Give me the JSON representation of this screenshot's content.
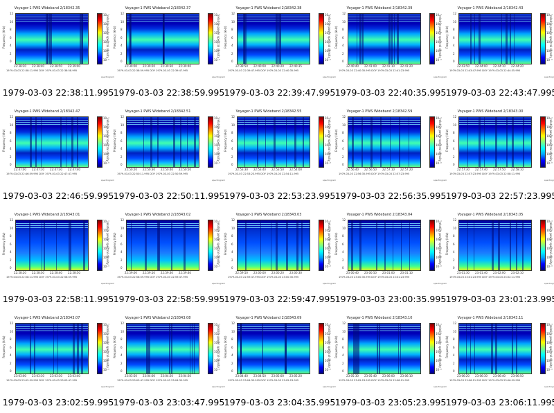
{
  "tile": {
    "title_prefix": "Voyager-1 PWS Wideband",
    "ylabel": "Frequency (kHz)",
    "cbar_label": "relative power spectral density",
    "yticks": [
      "12",
      "10",
      "8",
      "6",
      "4",
      "2",
      "0"
    ],
    "cbar_ticks": [
      "10⁻¹",
      "10⁻²",
      "10⁻³",
      "10⁻⁴",
      "10⁻⁵",
      "10⁻⁶"
    ],
    "corner_label": "spectrogram",
    "colors": {
      "deep": "#00008b",
      "mid": "#1e90ff",
      "cyan": "#00d8ff",
      "green": "#7cfc00",
      "yellow": "#ffd700"
    }
  },
  "tiles": [
    {
      "title": "Voyager-1 PWS Wideband 2/18342.35",
      "x": [
        "22:38:20",
        "22:38:40",
        "22:38:50",
        "22:39:00"
      ],
      "foot": "1979-03-03 22:38:11.995   DOY   1979-03-03 22:38:58.995",
      "caption": "1979-03-03 22:38:11.995"
    },
    {
      "title": "Voyager-1 PWS Wideband 2/18342.37",
      "x": [
        "22:39:00",
        "22:39:20",
        "22:39:30",
        "22:39:40"
      ],
      "foot": "1979-03-03 22:38:59.995   DOY   1979-03-03 22:39:47.995",
      "caption": "1979-03-03 22:38:59.995"
    },
    {
      "title": "Voyager-1 PWS Wideband 2/18342.38",
      "x": [
        "22:39:50",
        "22:40:00",
        "22:40:20",
        "22:40:35"
      ],
      "foot": "1979-03-03 22:39:47.995   DOY   1979-03-03 22:40:35.995",
      "caption": "1979-03-03 22:39:47.995"
    },
    {
      "title": "Voyager-1 PWS Wideband 2/18342.39",
      "x": [
        "22:40:40",
        "22:41:00",
        "22:41:10",
        "22:41:20"
      ],
      "foot": "1979-03-03 22:40:35.995   DOY   1979-03-03 22:41:23.995",
      "caption": "1979-03-03 22:40:35.995"
    },
    {
      "title": "Voyager-1 PWS Wideband 2/18342.43",
      "x": [
        "22:43:50",
        "22:44:00",
        "22:44:10",
        "22:44:20"
      ],
      "foot": "1979-03-03 22:43:47.995   DOY   1979-03-03 22:44:35.995",
      "caption": "1979-03-03 22:43:47.995"
    },
    {
      "title": "Voyager-1 PWS Wideband 2/18342.47",
      "x": [
        "22:47:00",
        "22:47:10",
        "22:47:30",
        "22:47:40"
      ],
      "foot": "1979-03-03 22:46:59.995   DOY   1979-03-03 22:47:47.995",
      "caption": "1979-03-03 22:46:59.995"
    },
    {
      "title": "Voyager-1 PWS Wideband 2/18342.51",
      "x": [
        "22:50:20",
        "22:50:30",
        "22:50:40",
        "22:50:50"
      ],
      "foot": "1979-03-03 22:50:11.995   DOY   1979-03-03 22:50:59.995",
      "caption": "1979-03-03 22:50:11.995"
    },
    {
      "title": "Voyager-1 PWS Wideband 2/18342.55",
      "x": [
        "22:53:30",
        "22:53:40",
        "22:53:50",
        "22:54:00"
      ],
      "foot": "1979-03-03 22:53:23.995   DOY   1979-03-03 22:54:11.995",
      "caption": "1979-03-03 22:53:23.995"
    },
    {
      "title": "Voyager-1 PWS Wideband 2/18342.59",
      "x": [
        "22:56:40",
        "22:56:50",
        "22:57:10",
        "22:57:20"
      ],
      "foot": "1979-03-03 22:56:35.995   DOY   1979-03-03 22:57:23.995",
      "caption": "1979-03-03 22:56:35.995"
    },
    {
      "title": "Voyager-1 PWS Wideband 2/18343.00",
      "x": [
        "22:57:30",
        "22:57:40",
        "22:57:50",
        "22:58:10"
      ],
      "foot": "1979-03-03 22:57:23.995   DOY   1979-03-03 22:58:11.995",
      "caption": "1979-03-03 22:57:23.995"
    },
    {
      "title": "Voyager-1 PWS Wideband 2/18343.01",
      "x": [
        "22:58:20",
        "22:58:30",
        "22:58:40",
        "22:58:50"
      ],
      "foot": "1979-03-03 22:58:11.995   DOY   1979-03-03 22:58:59.995",
      "caption": "1979-03-03 22:58:11.995"
    },
    {
      "title": "Voyager-1 PWS Wideband 2/18343.02",
      "x": [
        "22:59:00",
        "22:59:10",
        "22:59:30",
        "22:59:40"
      ],
      "foot": "1979-03-03 22:58:59.995   DOY   1979-03-03 22:59:47.995",
      "caption": "1979-03-03 22:58:59.995"
    },
    {
      "title": "Voyager-1 PWS Wideband 2/18343.03",
      "x": [
        "22:59:50",
        "23:00:00",
        "23:00:20",
        "23:00:30"
      ],
      "foot": "1979-03-03 22:59:47.995   DOY   1979-03-03 23:00:35.995",
      "caption": "1979-03-03 22:59:47.995"
    },
    {
      "title": "Voyager-1 PWS Wideband 2/18343.04",
      "x": [
        "23:00:40",
        "23:00:50",
        "23:01:00",
        "23:01:10"
      ],
      "foot": "1979-03-03 23:00:35.995   DOY   1979-03-03 23:01:23.995",
      "caption": "1979-03-03 23:00:35.995"
    },
    {
      "title": "Voyager-1 PWS Wideband 2/18343.05",
      "x": [
        "23:01:30",
        "23:01:40",
        "23:02:00",
        "23:02:10"
      ],
      "foot": "1979-03-03 23:01:23.995   DOY   1979-03-03 23:02:11.995",
      "caption": "1979-03-03 23:01:23.995"
    },
    {
      "title": "Voyager-1 PWS Wideband 2/18343.07",
      "x": [
        "23:03:00",
        "23:03:10",
        "23:03:30",
        "23:03:40"
      ],
      "foot": "1979-03-03 23:02:59.995   DOY   1979-03-03 23:03:47.995",
      "caption": "1979-03-03 23:02:59.995"
    },
    {
      "title": "Voyager-1 PWS Wideband 2/18343.08",
      "x": [
        "23:03:50",
        "23:04:00",
        "23:04:20",
        "23:04:30"
      ],
      "foot": "1979-03-03 23:03:47.995   DOY   1979-03-03 23:04:35.995",
      "caption": "1979-03-03 23:03:47.995"
    },
    {
      "title": "Voyager-1 PWS Wideband 2/18343.09",
      "x": [
        "23:04:40",
        "23:04:50",
        "23:05:00",
        "23:05:20"
      ],
      "foot": "1979-03-03 23:04:35.995   DOY   1979-03-03 23:05:23.995",
      "caption": "1979-03-03 23:04:35.995"
    },
    {
      "title": "Voyager-1 PWS Wideband 2/18343.10",
      "x": [
        "23:05:30",
        "23:05:40",
        "23:06:00",
        "23:06:10"
      ],
      "foot": "1979-03-03 23:05:23.995   DOY   1979-03-03 23:06:11.995",
      "caption": "1979-03-03 23:05:23.995"
    },
    {
      "title": "Voyager-1 PWS Wideband 2/18343.11",
      "x": [
        "23:06:20",
        "23:06:30",
        "23:06:40",
        "23:06:50"
      ],
      "foot": "1979-03-03 23:06:11.995   DOY   1979-03-03 23:06:59.995",
      "caption": "1979-03-03 23:06:11.995"
    }
  ]
}
